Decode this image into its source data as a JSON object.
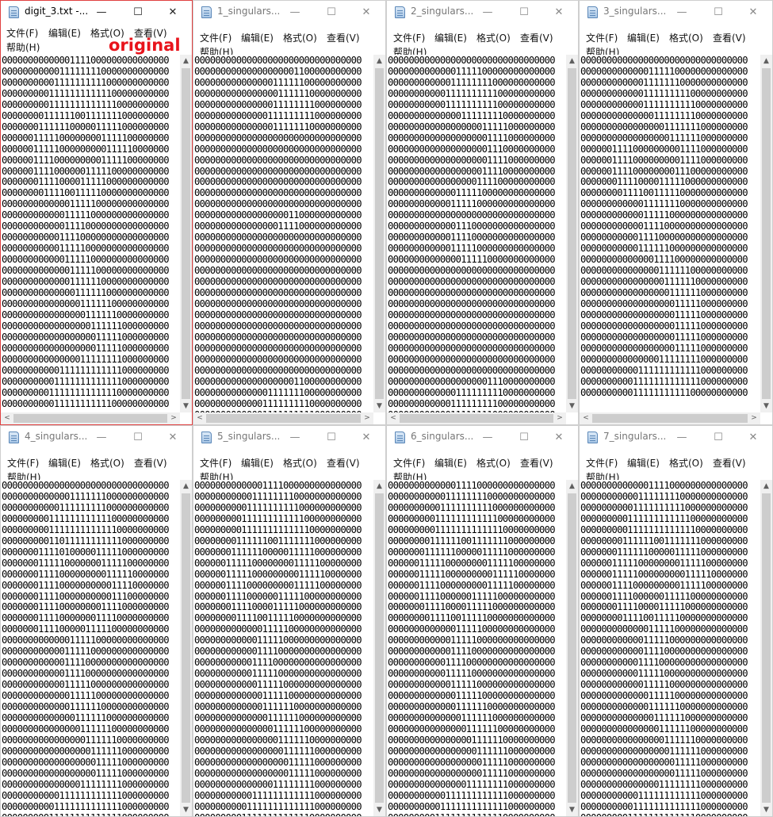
{
  "menu": {
    "file": "文件(F)",
    "edit": "编辑(E)",
    "format": "格式(O)",
    "view": "查看(V)",
    "help": "帮助(H)"
  },
  "controls": {
    "minimize": "—",
    "maximize": "☐",
    "close": "✕"
  },
  "scroll_arrows": {
    "up": "▲",
    "down": "▼",
    "left": "<",
    "right": ">"
  },
  "windows": [
    {
      "title": "digit_3.txt -...",
      "label": "original",
      "lines": [
        "00000000000001111000000000000000",
        "00000000000111111110000000000000",
        "00000000001111111111000000000000",
        "00000000011111111111100000000000",
        "00000000011111111111110000000000",
        "00000000111111001111111000000000",
        "00000001111110000011111000000000",
        "00000011111000000001111100000000",
        "00000011111000000000111110000000",
        "00000011110000000001111100000000",
        "00000011110000001111100000000000",
        "00000001111000011111000000000000",
        "00000000111100111110000000000000",
        "00000000000001111100000000000000",
        "00000000000011111000000000000000",
        "00000000000011110000000000000000",
        "00000000000111100000000000000000",
        "00000000000111110000000000000000",
        "00000000000011111000000000000000",
        "00000000000001111100000000000000",
        "00000000000001111110000000000000",
        "00000000000000111111000000000000",
        "00000000000000011111100000000000",
        "00000000000000001111110000000000",
        "00000000000000000111111000000000",
        "00000000000000000011111000000000",
        "00000000000000000011111000000000",
        "00000000000000011111111000000000",
        "00000000000111111111111000000000",
        "00000000001111111111111000000000",
        "00000000011111111111110000000000",
        "00000000001111111111100000000000"
      ]
    },
    {
      "title": "1_singulars...",
      "lines": [
        "00000000000000000000000000000000",
        "00000000000000000001100000000000",
        "00000000000000011111100000000000",
        "00000000000000001111110000000000",
        "00000000000000011111111000000000",
        "00000000000000111111111000000000",
        "00000000000000011111110000000000",
        "00000000000000000000000000000000",
        "00000000000000000000000000000000",
        "00000000000000000000000000000000",
        "00000000000000000000000000000000",
        "00000000000000000000000000000000",
        "00000000000000000000000000000000",
        "00000000000000000000000000000000",
        "00000000000000000011000000000000",
        "00000000000000001111000000000000",
        "00000000000000000000000000000000",
        "00000000000000000000000000000000",
        "00000000000000000000000000000000",
        "00000000000000000000000000000000",
        "00000000000000000000000000000000",
        "00000000000000000000000000000000",
        "00000000000000000000000000000000",
        "00000000000000000000000000000000",
        "00000000000000000000000000000000",
        "00000000000000000000000000000000",
        "00000000000000000000000000000000",
        "00000000000000000000000000000000",
        "00000000000000000000000000000000",
        "00000000000000000001100000000000",
        "00000000000000111111100000000000",
        "00000000000001111111110000000000",
        "00000000000001111111111000000000"
      ]
    },
    {
      "title": "2_singulars...",
      "lines": [
        "00000000000000000000000000000000",
        "00000000000001111100000000000000",
        "00000000000011111111000000000000",
        "00000000000111111111100000000000",
        "00000000000111111111100000000000",
        "00000000000000111111110000000000",
        "00000000000000000011111000000000",
        "00000000000000000001111000000000",
        "00000000000000000001110000000000",
        "00000000000000000001111000000000",
        "00000000000000000011110000000000",
        "00000000000000000111100000000000",
        "00000000000001111100000000000000",
        "00000000000011111000000000000000",
        "00000000000000000000000000000000",
        "00000000000001110000000000000000",
        "00000000000011110000000000000000",
        "00000000000011111000000000000000",
        "00000000000000111110000000000000",
        "00000000000000000000000000000000",
        "00000000000000000000000000000000",
        "00000000000000000000000000000000",
        "00000000000000000000000000000000",
        "00000000000000000000000000000000",
        "00000000000000000000000000000000",
        "00000000000000000000000000000000",
        "00000000000000000000000000000000",
        "00000000000000000000000000000000",
        "00000000000000000000000000000000",
        "00000000000000000001110000000000",
        "00000000000001111111110000000000",
        "00000000000011111111100000000000",
        "00000000000011111111000000000000"
      ]
    },
    {
      "title": "3_singulars...",
      "lines": [
        "00000000000000000000000000000000",
        "00000000000001111100000000000000",
        "00000000000011111110000000000000",
        "00000000000011111111100000000000",
        "00000000000011111111110000000000",
        "00000000000000111111110000000000",
        "00000000000000001111111000000000",
        "00000000000000000111111000000000",
        "00000011110000000001111000000000",
        "00000011110000000001111000000000",
        "00000011110000000011100000000000",
        "00000001111000011111000000000000",
        "00000000111100111110000000000000",
        "00000000000011111110000000000000",
        "00000000000011111000000000000000",
        "00000000000011110000000000000000",
        "00000000000111100000000000000000",
        "00000000000111111000000000000000",
        "00000000000000111100000000000000",
        "00000000000000011111100000000000",
        "00000000000000001111110000000000",
        "00000000000000000111111000000000",
        "00000000000000000011111000000000",
        "00000000000000000011111000000000",
        "00000000000000000011111000000000",
        "00000000000000000011111000000000",
        "00000000000000000011111000000000",
        "00000000000000011111111000000000",
        "00000000000111111111111000000000",
        "00000000001111111111111000000000",
        "00000000001111111111100000000000"
      ]
    },
    {
      "title": "4_singulars...",
      "lines": [
        "00000000000000000000000000000000",
        "00000000000001111111000000000000",
        "00000000000111111111000000000000",
        "00000000011111111111100000000000",
        "00000000011111111111110000000000",
        "00000000011011111111111000000000",
        "00000001111010000011111000000000",
        "00000001111100000001111100000000",
        "00000001111000000000111110000000",
        "00000001111000000000011110000000",
        "00000001111000000000011100000000",
        "00000001111000000001111000000000",
        "00000001111000000011110000000000",
        "00000001111000001111100000000000",
        "00000000000001111100000000000000",
        "00000000000011111000000000000000",
        "00000000000011110000000000000000",
        "00000000000011110000000000000000",
        "00000000000011111000000000000000",
        "00000000000001111100000000000000",
        "00000000000001111110000000000000",
        "00000000000000111111000000000000",
        "00000000000000011111100000000000",
        "00000000000000001111110000000000",
        "00000000000000000111111000000000",
        "00000000000000000011111000000000",
        "00000000000000000011111000000000",
        "00000000000000011111111000000000",
        "00000000000111111111111000000000",
        "00000000001111111111111000000000",
        "00000000011111111111111000000000",
        "00000000011111111111100000000000"
      ]
    },
    {
      "title": "5_singulars...",
      "lines": [
        "00000000000001111000000000000000",
        "00000000000111111110000000000000",
        "00000000001111111111000000000000",
        "00000000011111111111100000000000",
        "00000000011111111111110000000000",
        "00000000111111001111111000000000",
        "00000001111110000011111000000000",
        "00000011111000000001111100000000",
        "00000011111000000000111110000000",
        "00000011110000000001111100000000",
        "00000011110000001111100000000000",
        "00000001111000011111000000000000",
        "00000000111100111110000000000000",
        "00000000000001111100000000000000",
        "00000000000011111000000000000000",
        "00000000000011110000000000000000",
        "00000000000111100000000000000000",
        "00000000000111110000000000000000",
        "00000000000011111000000000000000",
        "00000000000001111100000000000000",
        "00000000000001111110000000000000",
        "00000000000000111111000000000000",
        "00000000000000011111100000000000",
        "00000000000000001111110000000000",
        "00000000000000000111111000000000",
        "00000000000000000011111000000000",
        "00000000000000000011111000000000",
        "00000000000000011111111000000000",
        "00000000000111111111111000000000",
        "00000000001111111111111000000000",
        "00000000011111111111110000000000",
        "00000000001111111111100000000000"
      ]
    },
    {
      "title": "6_singulars...",
      "lines": [
        "00000000000001111000000000000000",
        "00000000000111111110000000000000",
        "00000000001111111111000000000000",
        "00000000011111111111100000000000",
        "00000000011111111111110000000000",
        "00000000111111001111111000000000",
        "00000001111110000011111000000000",
        "00000011111000000001111100000000",
        "00000011111000000000111110000000",
        "00000011110000000001111100000000",
        "00000011110000001111100000000000",
        "00000001111000011111000000000000",
        "00000000111100111110000000000000",
        "00000000000001111100000000000000",
        "00000000000011111000000000000000",
        "00000000000011110000000000000000",
        "00000000000111100000000000000000",
        "00000000000111110000000000000000",
        "00000000000011111000000000000000",
        "00000000000001111100000000000000",
        "00000000000001111110000000000000",
        "00000000000000111111000000000000",
        "00000000000000011111100000000000",
        "00000000000000001111110000000000",
        "00000000000000000111111000000000",
        "00000000000000000011111000000000",
        "00000000000000000011111000000000",
        "00000000000000011111111000000000",
        "00000000000111111111111000000000",
        "00000000001111111111111000000000",
        "00000000011111111111110000000000",
        "00000000001111111111100000000000"
      ]
    },
    {
      "title": "7_singulars...",
      "lines": [
        "00000000000001111000000000000000",
        "00000000000111111110000000000000",
        "00000000001111111111000000000000",
        "00000000011111111111100000000000",
        "00000000011111111111110000000000",
        "00000000111111001111111000000000",
        "00000001111110000011111000000000",
        "00000011111000000001111100000000",
        "00000011111000000000111110000000",
        "00000011110000000001111100000000",
        "00000011110000001111100000000000",
        "00000001111000011111000000000000",
        "00000000111100111110000000000000",
        "00000000000001111100000000000000",
        "00000000000011111000000000000000",
        "00000000000011110000000000000000",
        "00000000000111100000000000000000",
        "00000000000111110000000000000000",
        "00000000000011111000000000000000",
        "00000000000001111100000000000000",
        "00000000000001111110000000000000",
        "00000000000000111111000000000000",
        "00000000000000011111100000000000",
        "00000000000000001111110000000000",
        "00000000000000000111111000000000",
        "00000000000000000011111000000000",
        "00000000000000000011111000000000",
        "00000000000000011111111000000000",
        "00000000000111111111111000000000",
        "00000000001111111111111000000000",
        "00000000011111111111110000000000",
        "00000000001111111111100000000000"
      ]
    }
  ]
}
